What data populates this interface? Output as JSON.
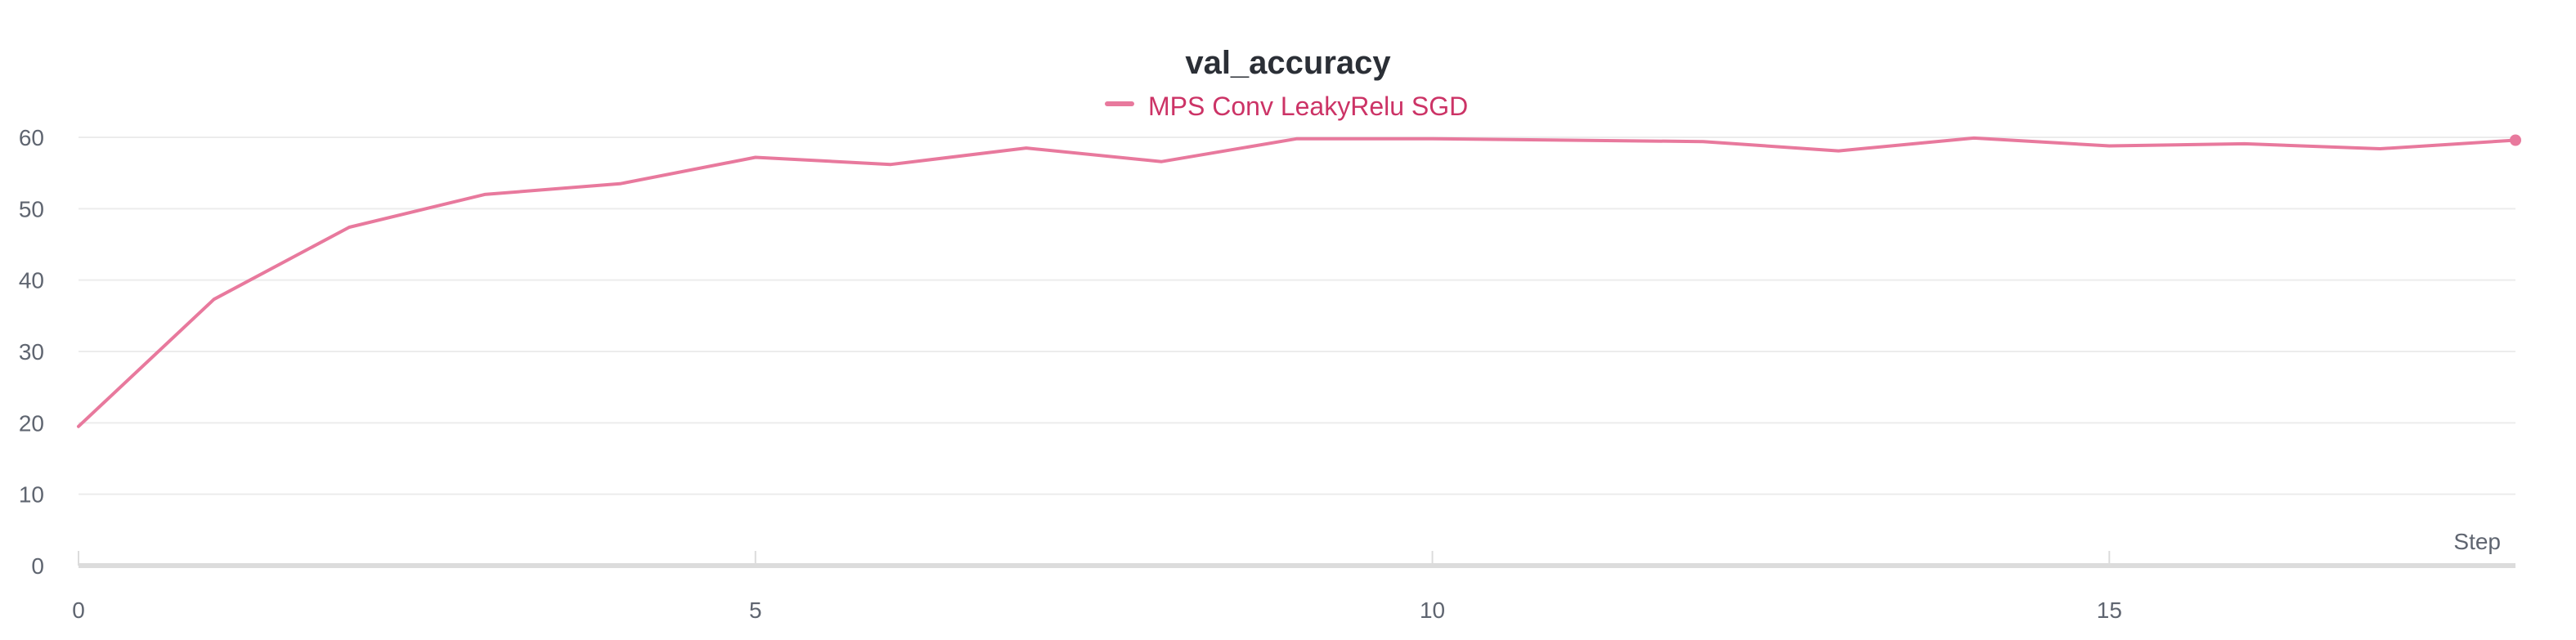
{
  "chart_data": {
    "type": "line",
    "title": "val_accuracy",
    "xlabel": "Step",
    "ylabel": "",
    "xlim": [
      0,
      18
    ],
    "ylim": [
      0,
      60
    ],
    "x_ticks": [
      0,
      5,
      10,
      15
    ],
    "y_ticks": [
      0,
      10,
      20,
      30,
      40,
      50,
      60
    ],
    "grid": "horizontal",
    "legend": "top-center",
    "series": [
      {
        "name": "MPS Conv LeakyRelu SGD",
        "color": "#e8799d",
        "label_color": "#cc3366",
        "x": [
          0,
          1,
          2,
          3,
          4,
          5,
          6,
          7,
          8,
          9,
          10,
          11,
          12,
          13,
          14,
          15,
          16,
          17,
          18
        ],
        "values": [
          19.5,
          37.3,
          47.4,
          52.0,
          53.5,
          57.2,
          56.2,
          58.5,
          56.6,
          59.8,
          59.8,
          59.6,
          59.4,
          58.1,
          59.9,
          58.8,
          59.1,
          58.4,
          59.6
        ]
      }
    ]
  }
}
